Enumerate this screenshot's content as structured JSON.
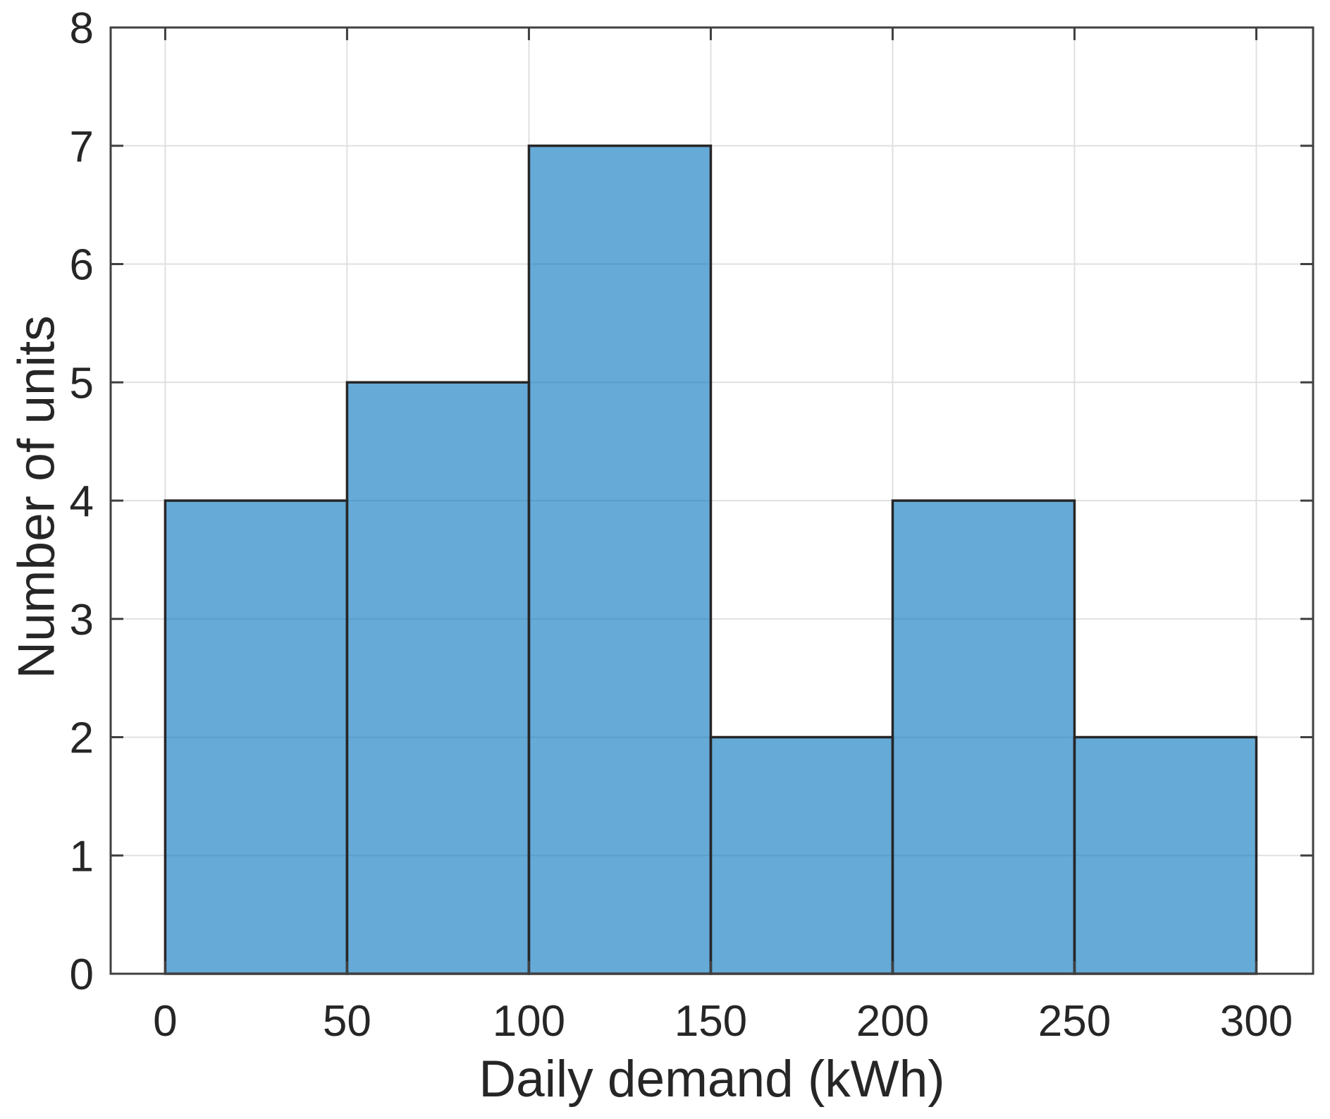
{
  "figure": {
    "background": "#ffffff"
  },
  "chart_data": {
    "type": "bar",
    "subtype": "histogram",
    "title": "",
    "xlabel": "Daily demand (kWh)",
    "ylabel": "Number of units",
    "bin_edges": [
      0,
      50,
      100,
      150,
      200,
      250,
      300
    ],
    "counts": [
      4,
      5,
      7,
      2,
      4,
      2
    ],
    "xticks": [
      0,
      50,
      100,
      150,
      200,
      250,
      300
    ],
    "yticks": [
      0,
      1,
      2,
      3,
      4,
      5,
      6,
      7,
      8
    ],
    "xlim": [
      -15,
      315.6
    ],
    "ylim": [
      0,
      8
    ],
    "grid": true,
    "legend_position": "none",
    "colors": {
      "bar_fill": "rgba(0,114,189,0.6)",
      "bar_edge": "#262626",
      "grid": "#e0e0e0",
      "spine": "#404040",
      "tick_text": "#262626"
    }
  }
}
